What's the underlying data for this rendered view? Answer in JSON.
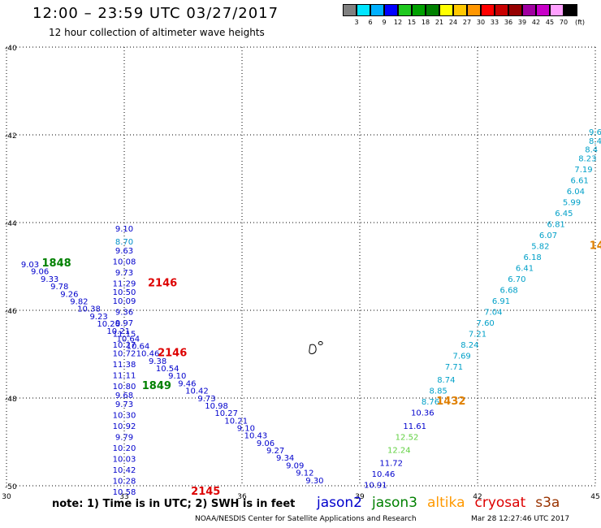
{
  "header": {
    "title": "12:00 – 23:59 UTC 03/27/2017",
    "subtitle": "12 hour collection of altimeter wave heights"
  },
  "colorbar": {
    "unit": "(ft)",
    "colors": [
      "#808080",
      "#00e5ff",
      "#00b0ff",
      "#0000ff",
      "#1ec81e",
      "#00a000",
      "#008000",
      "#ffff00",
      "#ffc800",
      "#ff9600",
      "#ff0000",
      "#c80000",
      "#960000",
      "#a000a0",
      "#c800c8",
      "#ffa0ff",
      "#000000"
    ],
    "labels": [
      "3",
      "6",
      "9",
      "12",
      "15",
      "18",
      "21",
      "24",
      "27",
      "30",
      "33",
      "36",
      "39",
      "42",
      "45",
      "70"
    ]
  },
  "map": {
    "lon_ticks": [
      "30",
      "33",
      "36",
      "39",
      "42",
      "45"
    ],
    "lat_ticks": [
      "-40",
      "-42",
      "-44",
      "-46",
      "-48",
      "-50"
    ],
    "lon_range": [
      30,
      45
    ],
    "lat_range": [
      -40,
      -50
    ],
    "grid": "dotted"
  },
  "tracks": [
    {
      "satellite": "jason2",
      "color": "#0000cc",
      "points": [
        {
          "lon": 30.6,
          "lat": -45.02,
          "v": "9.03"
        },
        {
          "lon": 30.85,
          "lat": -45.18,
          "v": "9.06"
        },
        {
          "lon": 31.1,
          "lat": -45.35,
          "v": "9.33"
        },
        {
          "lon": 31.35,
          "lat": -45.52,
          "v": "9.78"
        },
        {
          "lon": 31.6,
          "lat": -45.69,
          "v": "9.26"
        },
        {
          "lon": 31.85,
          "lat": -45.86,
          "v": "9.82"
        },
        {
          "lon": 32.1,
          "lat": -46.03,
          "v": "10.38"
        },
        {
          "lon": 32.35,
          "lat": -46.2,
          "v": "9.23"
        },
        {
          "lon": 32.6,
          "lat": -46.37,
          "v": "10.26"
        },
        {
          "lon": 32.85,
          "lat": -46.54,
          "v": "10.21"
        },
        {
          "lon": 33.1,
          "lat": -46.71,
          "v": "10.64"
        },
        {
          "lon": 33.35,
          "lat": -46.88,
          "v": "10.64"
        },
        {
          "lon": 33.6,
          "lat": -47.05,
          "v": "10.46"
        },
        {
          "lon": 33.85,
          "lat": -47.22,
          "v": "9.38"
        },
        {
          "lon": 34.1,
          "lat": -47.39,
          "v": "10.54"
        },
        {
          "lon": 34.35,
          "lat": -47.56,
          "v": "9.10"
        },
        {
          "lon": 34.6,
          "lat": -47.73,
          "v": "9.46"
        },
        {
          "lon": 34.85,
          "lat": -47.9,
          "v": "10.42"
        },
        {
          "lon": 35.1,
          "lat": -48.07,
          "v": "9.73"
        },
        {
          "lon": 35.35,
          "lat": -48.24,
          "v": "10.98"
        },
        {
          "lon": 35.6,
          "lat": -48.41,
          "v": "10.27"
        },
        {
          "lon": 35.85,
          "lat": -48.58,
          "v": "10.21"
        },
        {
          "lon": 36.1,
          "lat": -48.75,
          "v": "9.10"
        },
        {
          "lon": 36.35,
          "lat": -48.92,
          "v": "10.43"
        },
        {
          "lon": 36.6,
          "lat": -49.09,
          "v": "9.06"
        },
        {
          "lon": 36.85,
          "lat": -49.26,
          "v": "9.27"
        },
        {
          "lon": 37.1,
          "lat": -49.43,
          "v": "9.34"
        },
        {
          "lon": 37.35,
          "lat": -49.6,
          "v": "9.09"
        },
        {
          "lon": 37.6,
          "lat": -49.77,
          "v": "9.12"
        },
        {
          "lon": 37.85,
          "lat": -49.94,
          "v": "9.30"
        }
      ]
    },
    {
      "satellite": "jason2",
      "color": "#0000cc",
      "points": [
        {
          "lon": 33.0,
          "lat": -44.2,
          "v": "9.10"
        },
        {
          "lon": 33.0,
          "lat": -44.5,
          "v": "8.70",
          "color": "#0090c8"
        },
        {
          "lon": 33.0,
          "lat": -44.7,
          "v": "9.63"
        },
        {
          "lon": 33.0,
          "lat": -44.95,
          "v": "10.08"
        },
        {
          "lon": 33.0,
          "lat": -45.2,
          "v": "9.73"
        },
        {
          "lon": 33.0,
          "lat": -45.45,
          "v": "11.29"
        },
        {
          "lon": 33.0,
          "lat": -45.65,
          "v": "10.50"
        },
        {
          "lon": 33.0,
          "lat": -45.85,
          "v": "10.09"
        },
        {
          "lon": 33.0,
          "lat": -46.1,
          "v": "9.36"
        },
        {
          "lon": 33.0,
          "lat": -46.35,
          "v": "9.97"
        },
        {
          "lon": 33.0,
          "lat": -46.6,
          "v": "11.15"
        },
        {
          "lon": 33.0,
          "lat": -46.85,
          "v": "10.27"
        },
        {
          "lon": 33.0,
          "lat": -47.05,
          "v": "10.72"
        },
        {
          "lon": 33.0,
          "lat": -47.3,
          "v": "11.38"
        },
        {
          "lon": 33.0,
          "lat": -47.55,
          "v": "11.11"
        },
        {
          "lon": 33.0,
          "lat": -47.8,
          "v": "10.80"
        },
        {
          "lon": 33.0,
          "lat": -48.0,
          "v": "9.68"
        },
        {
          "lon": 33.0,
          "lat": -48.2,
          "v": "9.73"
        },
        {
          "lon": 33.0,
          "lat": -48.45,
          "v": "10.30"
        },
        {
          "lon": 33.0,
          "lat": -48.7,
          "v": "10.92"
        },
        {
          "lon": 33.0,
          "lat": -48.95,
          "v": "9.79"
        },
        {
          "lon": 33.0,
          "lat": -49.2,
          "v": "10.20"
        },
        {
          "lon": 33.0,
          "lat": -49.45,
          "v": "10.03"
        },
        {
          "lon": 33.0,
          "lat": -49.7,
          "v": "10.42"
        },
        {
          "lon": 33.0,
          "lat": -49.95,
          "v": "10.28"
        },
        {
          "lon": 33.0,
          "lat": -50.2,
          "v": "10.58"
        }
      ]
    },
    {
      "satellite": "jason2",
      "color": "#00a0c8",
      "points": [
        {
          "lon": 45.0,
          "lat": -42.0,
          "v": "9.6"
        },
        {
          "lon": 45.0,
          "lat": -42.2,
          "v": "8.4"
        },
        {
          "lon": 44.9,
          "lat": -42.4,
          "v": "8.4"
        },
        {
          "lon": 44.8,
          "lat": -42.6,
          "v": "8.23"
        },
        {
          "lon": 44.7,
          "lat": -42.85,
          "v": "7.19"
        },
        {
          "lon": 44.6,
          "lat": -43.1,
          "v": "6.61"
        },
        {
          "lon": 44.5,
          "lat": -43.35,
          "v": "6.04"
        },
        {
          "lon": 44.4,
          "lat": -43.6,
          "v": "5.99"
        },
        {
          "lon": 44.2,
          "lat": -43.85,
          "v": "6.45"
        },
        {
          "lon": 44.0,
          "lat": -44.1,
          "v": "6.81"
        },
        {
          "lon": 43.8,
          "lat": -44.35,
          "v": "6.07"
        },
        {
          "lon": 43.6,
          "lat": -44.6,
          "v": "5.82"
        },
        {
          "lon": 43.4,
          "lat": -44.85,
          "v": "6.18"
        },
        {
          "lon": 43.2,
          "lat": -45.1,
          "v": "6.41"
        },
        {
          "lon": 43.0,
          "lat": -45.35,
          "v": "6.70"
        },
        {
          "lon": 42.8,
          "lat": -45.6,
          "v": "6.68"
        },
        {
          "lon": 42.6,
          "lat": -45.85,
          "v": "6.91"
        },
        {
          "lon": 42.4,
          "lat": -46.1,
          "v": "7.04"
        },
        {
          "lon": 42.2,
          "lat": -46.35,
          "v": "7.60"
        },
        {
          "lon": 42.0,
          "lat": -46.6,
          "v": "7.21"
        },
        {
          "lon": 41.8,
          "lat": -46.85,
          "v": "8.24"
        },
        {
          "lon": 41.6,
          "lat": -47.1,
          "v": "7.69"
        },
        {
          "lon": 41.4,
          "lat": -47.35,
          "v": "7.71"
        },
        {
          "lon": 41.2,
          "lat": -47.65,
          "v": "8.74"
        },
        {
          "lon": 41.0,
          "lat": -47.9,
          "v": "8.85"
        },
        {
          "lon": 40.8,
          "lat": -48.15,
          "v": "8.76"
        },
        {
          "lon": 40.6,
          "lat": -48.4,
          "v": "10.36",
          "color": "#0000cc"
        },
        {
          "lon": 40.4,
          "lat": -48.7,
          "v": "11.61",
          "color": "#0000cc"
        },
        {
          "lon": 40.2,
          "lat": -48.95,
          "v": "12.52",
          "color": "#60d040"
        },
        {
          "lon": 40.0,
          "lat": -49.25,
          "v": "12.24",
          "color": "#60d040"
        },
        {
          "lon": 39.8,
          "lat": -49.55,
          "v": "11.72",
          "color": "#0000cc"
        },
        {
          "lon": 39.6,
          "lat": -49.8,
          "v": "10.46",
          "color": "#0000cc"
        },
        {
          "lon": 39.4,
          "lat": -50.05,
          "v": "10.91",
          "color": "#0000cc"
        }
      ]
    }
  ],
  "time_labels": [
    {
      "text": "1848",
      "color": "#008000",
      "lon": 30.9,
      "lat": -45.0
    },
    {
      "text": "2146",
      "color": "#dd0000",
      "lon": 33.6,
      "lat": -45.45
    },
    {
      "text": "2146",
      "color": "#dd0000",
      "lon": 33.85,
      "lat": -47.05
    },
    {
      "text": "1849",
      "color": "#008000",
      "lon": 33.45,
      "lat": -47.8
    },
    {
      "text": "2145",
      "color": "#dd0000",
      "lon": 34.7,
      "lat": -50.2
    },
    {
      "text": "1432",
      "color": "#e08000",
      "lon": 40.95,
      "lat": -48.15
    },
    {
      "text": "14",
      "color": "#e08000",
      "lon": 44.85,
      "lat": -44.6
    }
  ],
  "land": [
    {
      "name": "prince-edward-island",
      "lon": 37.8,
      "lat": -46.9
    },
    {
      "name": "marion-islet",
      "lon": 38.0,
      "lat": -46.75
    }
  ],
  "footer": {
    "note": "note: 1) Time is in UTC; 2) SWH is in feet",
    "satellites": [
      {
        "name": "jason2",
        "color": "#0000cc"
      },
      {
        "name": "jason3",
        "color": "#008000"
      },
      {
        "name": "altika",
        "color": "#ff9900"
      },
      {
        "name": "cryosat",
        "color": "#dd0000"
      },
      {
        "name": "s3a",
        "color": "#993300"
      }
    ],
    "credit": "NOAA/NESDIS Center for Satellite Applications and Research",
    "timestamp": "Mar 28 12:27:46 UTC 2017"
  }
}
